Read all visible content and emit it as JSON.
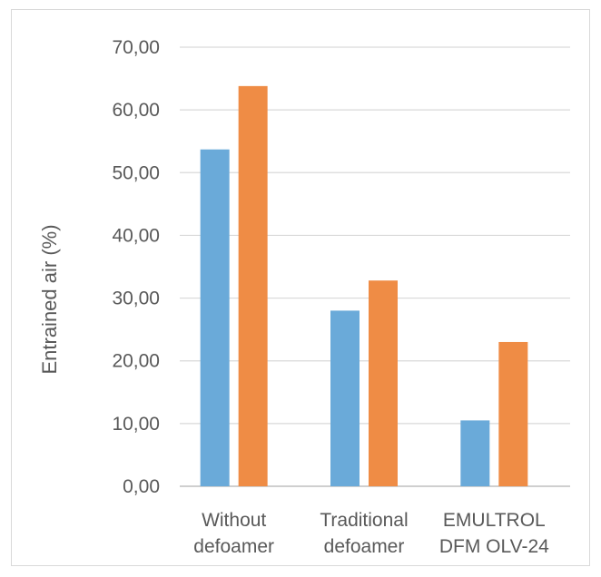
{
  "chart_data": {
    "type": "bar",
    "title": "",
    "xlabel": "",
    "ylabel": "Entrained air (%)",
    "ylim": [
      0,
      70
    ],
    "yticks": [
      "0,00",
      "10,00",
      "20,00",
      "30,00",
      "40,00",
      "50,00",
      "60,00",
      "70,00"
    ],
    "ytick_values": [
      0,
      10,
      20,
      30,
      40,
      50,
      60,
      70
    ],
    "grid": true,
    "legend": "none",
    "categories": [
      [
        "Without",
        "defoamer"
      ],
      [
        "Traditional",
        "defoamer"
      ],
      [
        "EMULTROL",
        "DFM OLV-24"
      ]
    ],
    "series": [
      {
        "color": "#6aaad9",
        "values": [
          53.7,
          28.0,
          10.5
        ]
      },
      {
        "color": "#ef8c45",
        "values": [
          63.8,
          32.8,
          23.0
        ]
      }
    ]
  },
  "colors": {
    "gridline": "#d9d9d9",
    "axis": "#bfbfbf",
    "text": "#595959"
  }
}
